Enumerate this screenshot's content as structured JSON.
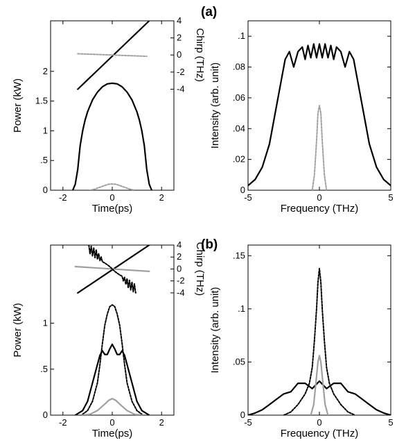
{
  "figure": {
    "panel_labels": [
      "(a)",
      "(b)"
    ]
  },
  "colors": {
    "solid": "#000000",
    "gray": "#a0a0a0"
  },
  "chart_data": [
    {
      "id": "a-time",
      "type": "line",
      "xlabel": "Time(ps)",
      "ylabel": "Power (kW)",
      "y2label": "Chirp (THz)",
      "xlim": [
        -2.5,
        2.5
      ],
      "ylim": [
        0,
        2.85
      ],
      "y2lim": [
        -4,
        4
      ],
      "xticks": [
        -2,
        0,
        2
      ],
      "yticks": [
        0,
        0.5,
        1,
        1.5,
        2
      ],
      "ytick_labels": [
        "0",
        ".5",
        "1",
        "1.5",
        "2"
      ],
      "y2ticks": [
        -4,
        -2,
        0,
        2,
        4
      ],
      "y2tick_labels": [
        "-4",
        "-2",
        "0",
        "2",
        "4"
      ],
      "y2_band": [
        1.7,
        2.85
      ],
      "grid": false,
      "series": [
        {
          "axis": "y",
          "style": "solid-black",
          "x": [
            -1.6,
            -1.5,
            -1.4,
            -1.3,
            -1.2,
            -1.1,
            -1.0,
            -0.8,
            -0.6,
            -0.4,
            -0.2,
            0,
            0.2,
            0.4,
            0.6,
            0.8,
            1.0,
            1.1,
            1.2,
            1.3,
            1.4,
            1.5,
            1.6
          ],
          "y": [
            0,
            0.1,
            0.35,
            0.75,
            1.0,
            1.18,
            1.32,
            1.52,
            1.65,
            1.74,
            1.79,
            1.8,
            1.79,
            1.74,
            1.65,
            1.52,
            1.32,
            1.18,
            1.0,
            0.75,
            0.35,
            0.1,
            0
          ]
        },
        {
          "axis": "y",
          "style": "dotted-gray",
          "x": [
            -0.9,
            -0.7,
            -0.5,
            -0.3,
            -0.15,
            0,
            0.15,
            0.3,
            0.5,
            0.7,
            0.9
          ],
          "y": [
            0,
            0.02,
            0.05,
            0.08,
            0.1,
            0.105,
            0.1,
            0.08,
            0.05,
            0.02,
            0
          ]
        },
        {
          "axis": "y2",
          "style": "solid-black",
          "x": [
            -1.4,
            1.5
          ],
          "y": [
            -4.0,
            4.0
          ]
        },
        {
          "axis": "y2",
          "style": "dotted-gray",
          "x": [
            -1.4,
            1.4
          ],
          "y": [
            0.15,
            -0.15
          ]
        }
      ]
    },
    {
      "id": "a-freq",
      "type": "line",
      "xlabel": "Frequency (THz)",
      "ylabel": "Intensity (arb. unit)",
      "xlim": [
        -5,
        5
      ],
      "ylim": [
        0,
        0.11
      ],
      "xticks": [
        -5,
        0,
        5
      ],
      "yticks": [
        0,
        0.02,
        0.04,
        0.06,
        0.08,
        0.1
      ],
      "ytick_labels": [
        "0",
        ".02",
        ".04",
        ".06",
        ".08",
        ".1"
      ],
      "grid": false,
      "series": [
        {
          "style": "solid-black",
          "x": [
            -5,
            -4.5,
            -4,
            -3.5,
            -3,
            -2.7,
            -2.4,
            -2.1,
            -1.8,
            -1.5,
            -1.2,
            -1.0,
            -0.8,
            -0.6,
            -0.4,
            -0.2,
            0,
            0.2,
            0.4,
            0.6,
            0.8,
            1.0,
            1.2,
            1.5,
            1.8,
            2.1,
            2.4,
            2.7,
            3,
            3.5,
            4,
            4.5,
            5
          ],
          "y": [
            0.003,
            0.007,
            0.015,
            0.03,
            0.055,
            0.07,
            0.085,
            0.09,
            0.08,
            0.09,
            0.093,
            0.085,
            0.094,
            0.086,
            0.095,
            0.086,
            0.095,
            0.086,
            0.095,
            0.086,
            0.094,
            0.085,
            0.093,
            0.09,
            0.08,
            0.09,
            0.085,
            0.07,
            0.055,
            0.03,
            0.015,
            0.007,
            0.003
          ]
        },
        {
          "style": "dotted-gray",
          "x": [
            -0.5,
            -0.35,
            -0.2,
            -0.1,
            0,
            0.1,
            0.2,
            0.35,
            0.5
          ],
          "y": [
            0.0,
            0.01,
            0.032,
            0.05,
            0.055,
            0.05,
            0.032,
            0.01,
            0.0
          ]
        }
      ]
    },
    {
      "id": "b-time",
      "type": "line",
      "xlabel": "Time(ps)",
      "ylabel": "Power (kW)",
      "y2label": "Chirp (THz)",
      "xlim": [
        -2.5,
        2.5
      ],
      "ylim": [
        0,
        1.85
      ],
      "y2lim": [
        -4,
        4
      ],
      "xticks": [
        -2,
        0,
        2
      ],
      "yticks": [
        0,
        0.5,
        1
      ],
      "ytick_labels": [
        "0",
        ".5",
        "1"
      ],
      "y2ticks": [
        -4,
        -2,
        0,
        2,
        4
      ],
      "y2tick_labels": [
        "-4",
        "-2",
        "0",
        "2",
        "4"
      ],
      "y2_band": [
        1.33,
        1.85
      ],
      "grid": false,
      "series": [
        {
          "axis": "y",
          "style": "dotted-black",
          "x": [
            -1.2,
            -1.0,
            -0.8,
            -0.6,
            -0.5,
            -0.4,
            -0.3,
            -0.2,
            -0.1,
            0,
            0.1,
            0.2,
            0.3,
            0.4,
            0.5,
            0.6,
            0.8,
            1.0,
            1.2
          ],
          "y": [
            0.01,
            0.05,
            0.15,
            0.35,
            0.55,
            0.78,
            0.98,
            1.1,
            1.18,
            1.2,
            1.18,
            1.1,
            0.98,
            0.78,
            0.55,
            0.35,
            0.15,
            0.05,
            0.01
          ]
        },
        {
          "axis": "y",
          "style": "solid-black",
          "x": [
            -1.5,
            -1.2,
            -1.0,
            -0.8,
            -0.6,
            -0.5,
            -0.4,
            -0.3,
            -0.2,
            -0.1,
            0,
            0.1,
            0.2,
            0.3,
            0.4,
            0.5,
            0.6,
            0.8,
            1.0,
            1.2,
            1.5
          ],
          "y": [
            0.0,
            0.05,
            0.15,
            0.35,
            0.55,
            0.65,
            0.7,
            0.66,
            0.66,
            0.72,
            0.77,
            0.72,
            0.66,
            0.66,
            0.7,
            0.65,
            0.55,
            0.35,
            0.15,
            0.05,
            0.0
          ]
        },
        {
          "axis": "y",
          "style": "solid-gray",
          "x": [
            -1.2,
            -0.9,
            -0.6,
            -0.3,
            -0.15,
            0,
            0.15,
            0.3,
            0.6,
            0.9,
            1.2
          ],
          "y": [
            0.0,
            0.01,
            0.05,
            0.12,
            0.16,
            0.18,
            0.16,
            0.12,
            0.05,
            0.01,
            0.0
          ]
        },
        {
          "axis": "y2",
          "style": "solid-black",
          "x": [
            -1.4,
            1.5
          ],
          "y": [
            -4.0,
            4.0
          ]
        },
        {
          "axis": "y2",
          "style": "solid-gray",
          "x": [
            -1.5,
            1.5
          ],
          "y": [
            0.4,
            -0.4
          ]
        },
        {
          "axis": "y2",
          "style": "dotted-black",
          "x": [
            -0.95,
            -0.9,
            -0.85,
            -0.8,
            -0.75,
            -0.7,
            -0.65,
            -0.6,
            -0.55,
            -0.5,
            -0.45,
            -0.4,
            -0.3,
            -0.2,
            -0.1,
            0,
            0.1,
            0.2,
            0.3,
            0.4,
            0.45,
            0.5,
            0.55,
            0.6,
            0.65,
            0.7,
            0.75,
            0.8,
            0.85,
            0.9,
            0.95
          ],
          "y": [
            4.0,
            2.5,
            3.8,
            2.2,
            3.5,
            1.9,
            3.2,
            1.6,
            2.6,
            1.4,
            2.0,
            1.2,
            1.0,
            0.7,
            0.4,
            0.0,
            -0.4,
            -0.7,
            -1.0,
            -1.2,
            -2.0,
            -1.4,
            -2.6,
            -1.6,
            -3.2,
            -1.9,
            -3.5,
            -2.2,
            -3.8,
            -2.5,
            -4.0
          ]
        }
      ]
    },
    {
      "id": "b-freq",
      "type": "line",
      "xlabel": "Frequency (THz)",
      "ylabel": "Intensity (arb. unit)",
      "xlim": [
        -5,
        5
      ],
      "ylim": [
        0,
        0.16
      ],
      "xticks": [
        -5,
        0,
        5
      ],
      "yticks": [
        0,
        0.05,
        0.1,
        0.15
      ],
      "ytick_labels": [
        "0",
        ".05",
        ".1",
        ".15"
      ],
      "grid": false,
      "series": [
        {
          "style": "dotted-black",
          "x": [
            -2.5,
            -2,
            -1.5,
            -1.0,
            -0.7,
            -0.5,
            -0.35,
            -0.2,
            -0.1,
            0,
            0.1,
            0.2,
            0.35,
            0.5,
            0.7,
            1.0,
            1.5,
            2,
            2.5
          ],
          "y": [
            0.0,
            0.003,
            0.01,
            0.02,
            0.03,
            0.045,
            0.07,
            0.1,
            0.125,
            0.138,
            0.125,
            0.1,
            0.07,
            0.045,
            0.03,
            0.02,
            0.01,
            0.003,
            0.0
          ]
        },
        {
          "style": "solid-black",
          "x": [
            -5,
            -4.5,
            -4,
            -3.5,
            -3,
            -2.5,
            -2,
            -1.5,
            -1.0,
            -0.5,
            0,
            0.5,
            1.0,
            1.5,
            2,
            2.5,
            3,
            3.5,
            4,
            4.5,
            5
          ],
          "y": [
            0.0,
            0.002,
            0.005,
            0.01,
            0.015,
            0.02,
            0.022,
            0.03,
            0.03,
            0.025,
            0.032,
            0.025,
            0.03,
            0.03,
            0.022,
            0.02,
            0.015,
            0.01,
            0.005,
            0.002,
            0.0
          ]
        },
        {
          "style": "solid-gray",
          "x": [
            -0.6,
            -0.4,
            -0.25,
            -0.1,
            0,
            0.1,
            0.25,
            0.4,
            0.6
          ],
          "y": [
            0.0,
            0.01,
            0.03,
            0.05,
            0.056,
            0.05,
            0.03,
            0.01,
            0.0
          ]
        }
      ]
    }
  ]
}
